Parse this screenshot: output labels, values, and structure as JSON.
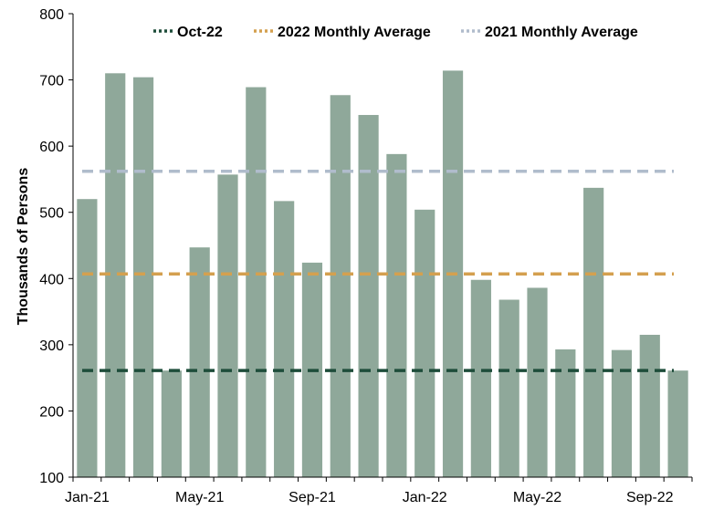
{
  "chart_data": {
    "type": "bar",
    "categories": [
      "Jan-21",
      "Feb-21",
      "Mar-21",
      "Apr-21",
      "May-21",
      "Jun-21",
      "Jul-21",
      "Aug-21",
      "Sep-21",
      "Oct-21",
      "Nov-21",
      "Dec-21",
      "Jan-22",
      "Feb-22",
      "Mar-22",
      "Apr-22",
      "May-22",
      "Jun-22",
      "Jul-22",
      "Aug-22",
      "Sep-22",
      "Oct-22"
    ],
    "values": [
      520,
      710,
      704,
      261,
      447,
      557,
      689,
      517,
      424,
      677,
      647,
      588,
      504,
      714,
      398,
      368,
      386,
      293,
      537,
      292,
      315,
      261
    ],
    "xtick_labels": [
      "Jan-21",
      "May-21",
      "Sep-21",
      "Jan-22",
      "May-22",
      "Sep-22"
    ],
    "xtick_indices": [
      0,
      4,
      8,
      12,
      16,
      20
    ],
    "ylabel": "Thousands of Persons",
    "ylim": [
      100,
      800
    ],
    "yticks": [
      100,
      200,
      300,
      400,
      500,
      600,
      700,
      800
    ],
    "bar_color": "#8fa89a",
    "reference_lines": [
      {
        "name": "Oct-22",
        "value": 261,
        "color": "#1e4d3a"
      },
      {
        "name": "2022 Monthly Average",
        "value": 407,
        "color": "#d4a04f"
      },
      {
        "name": "2021 Monthly Average",
        "value": 562,
        "color": "#b0bccc"
      }
    ],
    "legend_position": "top"
  }
}
